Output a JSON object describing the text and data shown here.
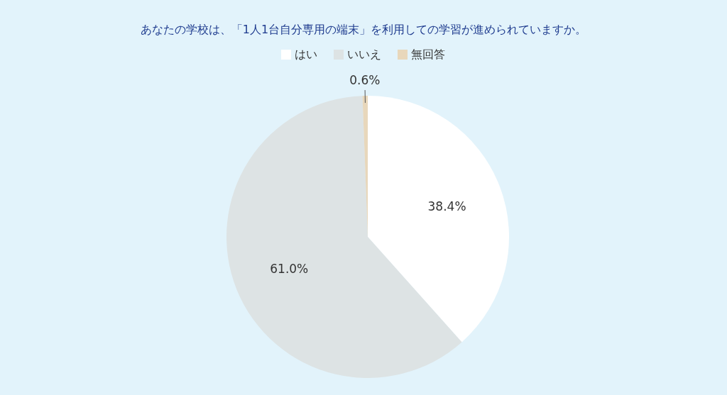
{
  "chart_data": {
    "type": "pie",
    "title": "あなたの学校は、「1人1台自分専用の端末」を利用しての学習が進められていますか。",
    "categories": [
      "はい",
      "いいえ",
      "無回答"
    ],
    "values": [
      38.4,
      61.0,
      0.6
    ],
    "colors": [
      "#ffffff",
      "#dde3e4",
      "#e8d7bb"
    ],
    "value_labels": [
      "38.4%",
      "61.0%",
      "0.6%"
    ],
    "legend": "top"
  }
}
